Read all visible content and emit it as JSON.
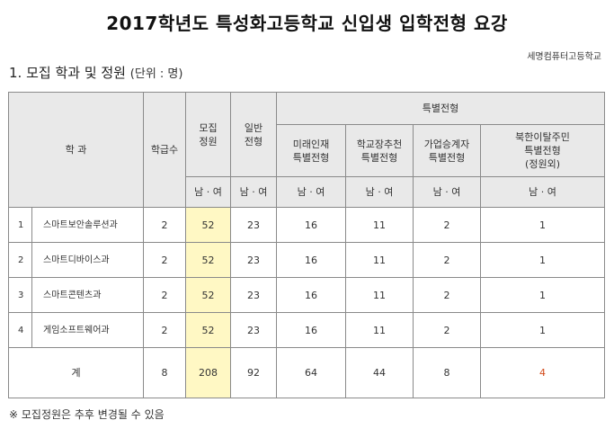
{
  "title": "2017학년도 특성화고등학교 신입생 입학전형 요강",
  "school": "세명컴퓨터고등학교",
  "section": {
    "heading": "1. 모집 학과 및 정원",
    "unit": "(단위 : 명)"
  },
  "table": {
    "header": {
      "dept": "학 과",
      "classes": "학급수",
      "quota": "모집\n정원",
      "general": "일반\n전형",
      "special": "특별전형",
      "special_cols": [
        "미래인재\n특별전형",
        "학교장추천\n특별전형",
        "가업승계자\n특별전형",
        "북한이탈주민\n특별전형\n(정원외)"
      ],
      "gender": "남 · 여"
    },
    "rows": [
      {
        "no": "1",
        "dept": "스마트보안솔루션과",
        "classes": "2",
        "quota": "52",
        "general": "23",
        "s1": "16",
        "s2": "11",
        "s3": "2",
        "s4": "1"
      },
      {
        "no": "2",
        "dept": "스마트디바이스과",
        "classes": "2",
        "quota": "52",
        "general": "23",
        "s1": "16",
        "s2": "11",
        "s3": "2",
        "s4": "1"
      },
      {
        "no": "3",
        "dept": "스마트콘텐츠과",
        "classes": "2",
        "quota": "52",
        "general": "23",
        "s1": "16",
        "s2": "11",
        "s3": "2",
        "s4": "1"
      },
      {
        "no": "4",
        "dept": "게임소프트웨어과",
        "classes": "2",
        "quota": "52",
        "general": "23",
        "s1": "16",
        "s2": "11",
        "s3": "2",
        "s4": "1"
      }
    ],
    "total": {
      "label": "계",
      "classes": "8",
      "quota": "208",
      "general": "92",
      "s1": "64",
      "s2": "44",
      "s3": "8",
      "s4": "4"
    }
  },
  "note": "※ 모집정원은 추후 변경될 수 있음",
  "colors": {
    "highlight": "#fff8c4",
    "header": "#e9e9e9",
    "accent_red": "#d24a1a"
  }
}
